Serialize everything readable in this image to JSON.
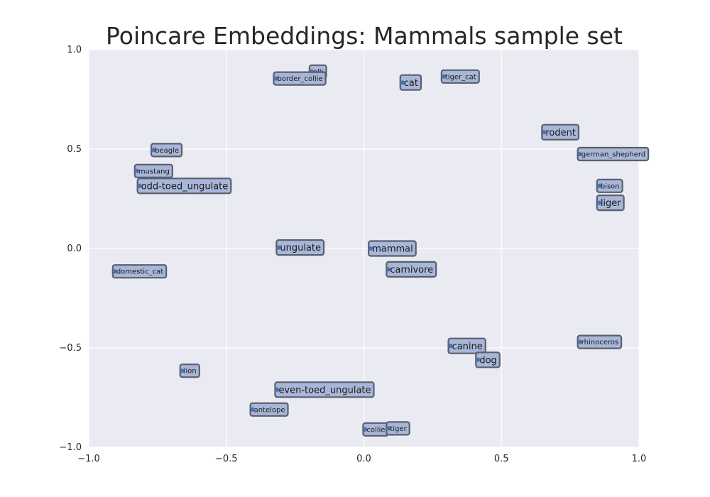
{
  "chart_data": {
    "type": "scatter",
    "title": "Poincare Embeddings: Mammals sample set",
    "xlabel": "",
    "ylabel": "",
    "xlim": [
      -1.0,
      1.0
    ],
    "ylim": [
      -1.0,
      1.0
    ],
    "grid": true,
    "x_ticks": [
      "−1.0",
      "−0.5",
      "0.0",
      "0.5",
      "1.0"
    ],
    "y_ticks": [
      "−1.0",
      "−0.5",
      "0.0",
      "0.5",
      "1.0"
    ],
    "colors": {
      "background": "#eaeaf2",
      "grid": "#ffffff",
      "marker": "#4c72b0",
      "label_box_fill": "#a4b4d6",
      "label_box_edge": "#5a5f6e"
    },
    "points": [
      {
        "label": "elk",
        "x": -0.19,
        "y": 0.89,
        "size": "small"
      },
      {
        "label": "border_collie",
        "x": -0.32,
        "y": 0.855,
        "size": "small"
      },
      {
        "label": "cat",
        "x": 0.14,
        "y": 0.835,
        "size": "large"
      },
      {
        "label": "tiger_cat",
        "x": 0.29,
        "y": 0.865,
        "size": "small"
      },
      {
        "label": "rodent",
        "x": 0.655,
        "y": 0.585,
        "size": "large"
      },
      {
        "label": "german_shepherd",
        "x": 0.785,
        "y": 0.475,
        "size": "small"
      },
      {
        "label": "beagle",
        "x": -0.765,
        "y": 0.495,
        "size": "small"
      },
      {
        "label": "mustang",
        "x": -0.825,
        "y": 0.39,
        "size": "small"
      },
      {
        "label": "odd-toed_ungulate",
        "x": -0.815,
        "y": 0.315,
        "size": "large"
      },
      {
        "label": "bison",
        "x": 0.855,
        "y": 0.315,
        "size": "small"
      },
      {
        "label": "liger",
        "x": 0.855,
        "y": 0.23,
        "size": "large"
      },
      {
        "label": "ungulate",
        "x": -0.31,
        "y": 0.005,
        "size": "large"
      },
      {
        "label": "mammal",
        "x": 0.025,
        "y": 0.0,
        "size": "large"
      },
      {
        "label": "carnivore",
        "x": 0.09,
        "y": -0.105,
        "size": "large"
      },
      {
        "label": "domestic_cat",
        "x": -0.905,
        "y": -0.115,
        "size": "small"
      },
      {
        "label": "rhinoceros",
        "x": 0.785,
        "y": -0.47,
        "size": "small"
      },
      {
        "label": "canine",
        "x": 0.315,
        "y": -0.49,
        "size": "large"
      },
      {
        "label": "dog",
        "x": 0.415,
        "y": -0.56,
        "size": "large"
      },
      {
        "label": "lion",
        "x": -0.66,
        "y": -0.615,
        "size": "small"
      },
      {
        "label": "even-toed_ungulate",
        "x": -0.315,
        "y": -0.71,
        "size": "large"
      },
      {
        "label": "antelope",
        "x": -0.405,
        "y": -0.81,
        "size": "small"
      },
      {
        "label": "collie",
        "x": 0.005,
        "y": -0.91,
        "size": "small"
      },
      {
        "label": "tiger",
        "x": 0.09,
        "y": -0.905,
        "size": "small"
      }
    ]
  }
}
